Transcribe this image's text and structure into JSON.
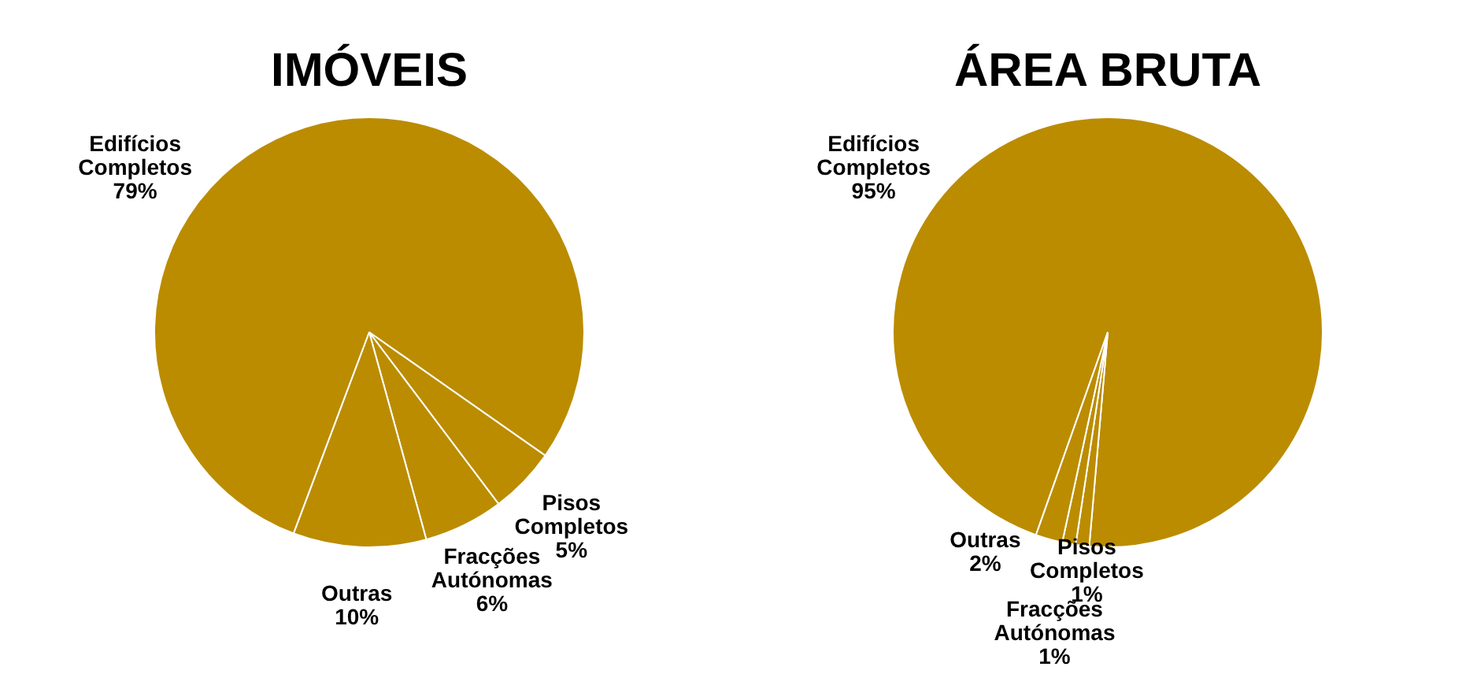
{
  "chart_data": [
    {
      "type": "pie",
      "title": "IMÓVEIS",
      "categories": [
        "Edifícios Completos",
        "Pisos Completos",
        "Fracções Autónomas",
        "Outras"
      ],
      "values": [
        79,
        5,
        6,
        10
      ],
      "value_labels": [
        "79%",
        "5%",
        "6%",
        "10%"
      ],
      "colors": [
        "#bb8c00",
        "#bb8c00",
        "#bb8c00",
        "#bb8c00"
      ],
      "legend": false
    },
    {
      "type": "pie",
      "title": "ÁREA BRUTA",
      "categories": [
        "Edifícios Completos",
        "Pisos Completos",
        "Fracções Autónomas",
        "Outras"
      ],
      "values": [
        95,
        1,
        1,
        2
      ],
      "value_labels": [
        "95%",
        "1%",
        "1%",
        "2%"
      ],
      "colors": [
        "#bb8c00",
        "#bb8c00",
        "#bb8c00",
        "#bb8c00"
      ],
      "legend": false
    }
  ]
}
